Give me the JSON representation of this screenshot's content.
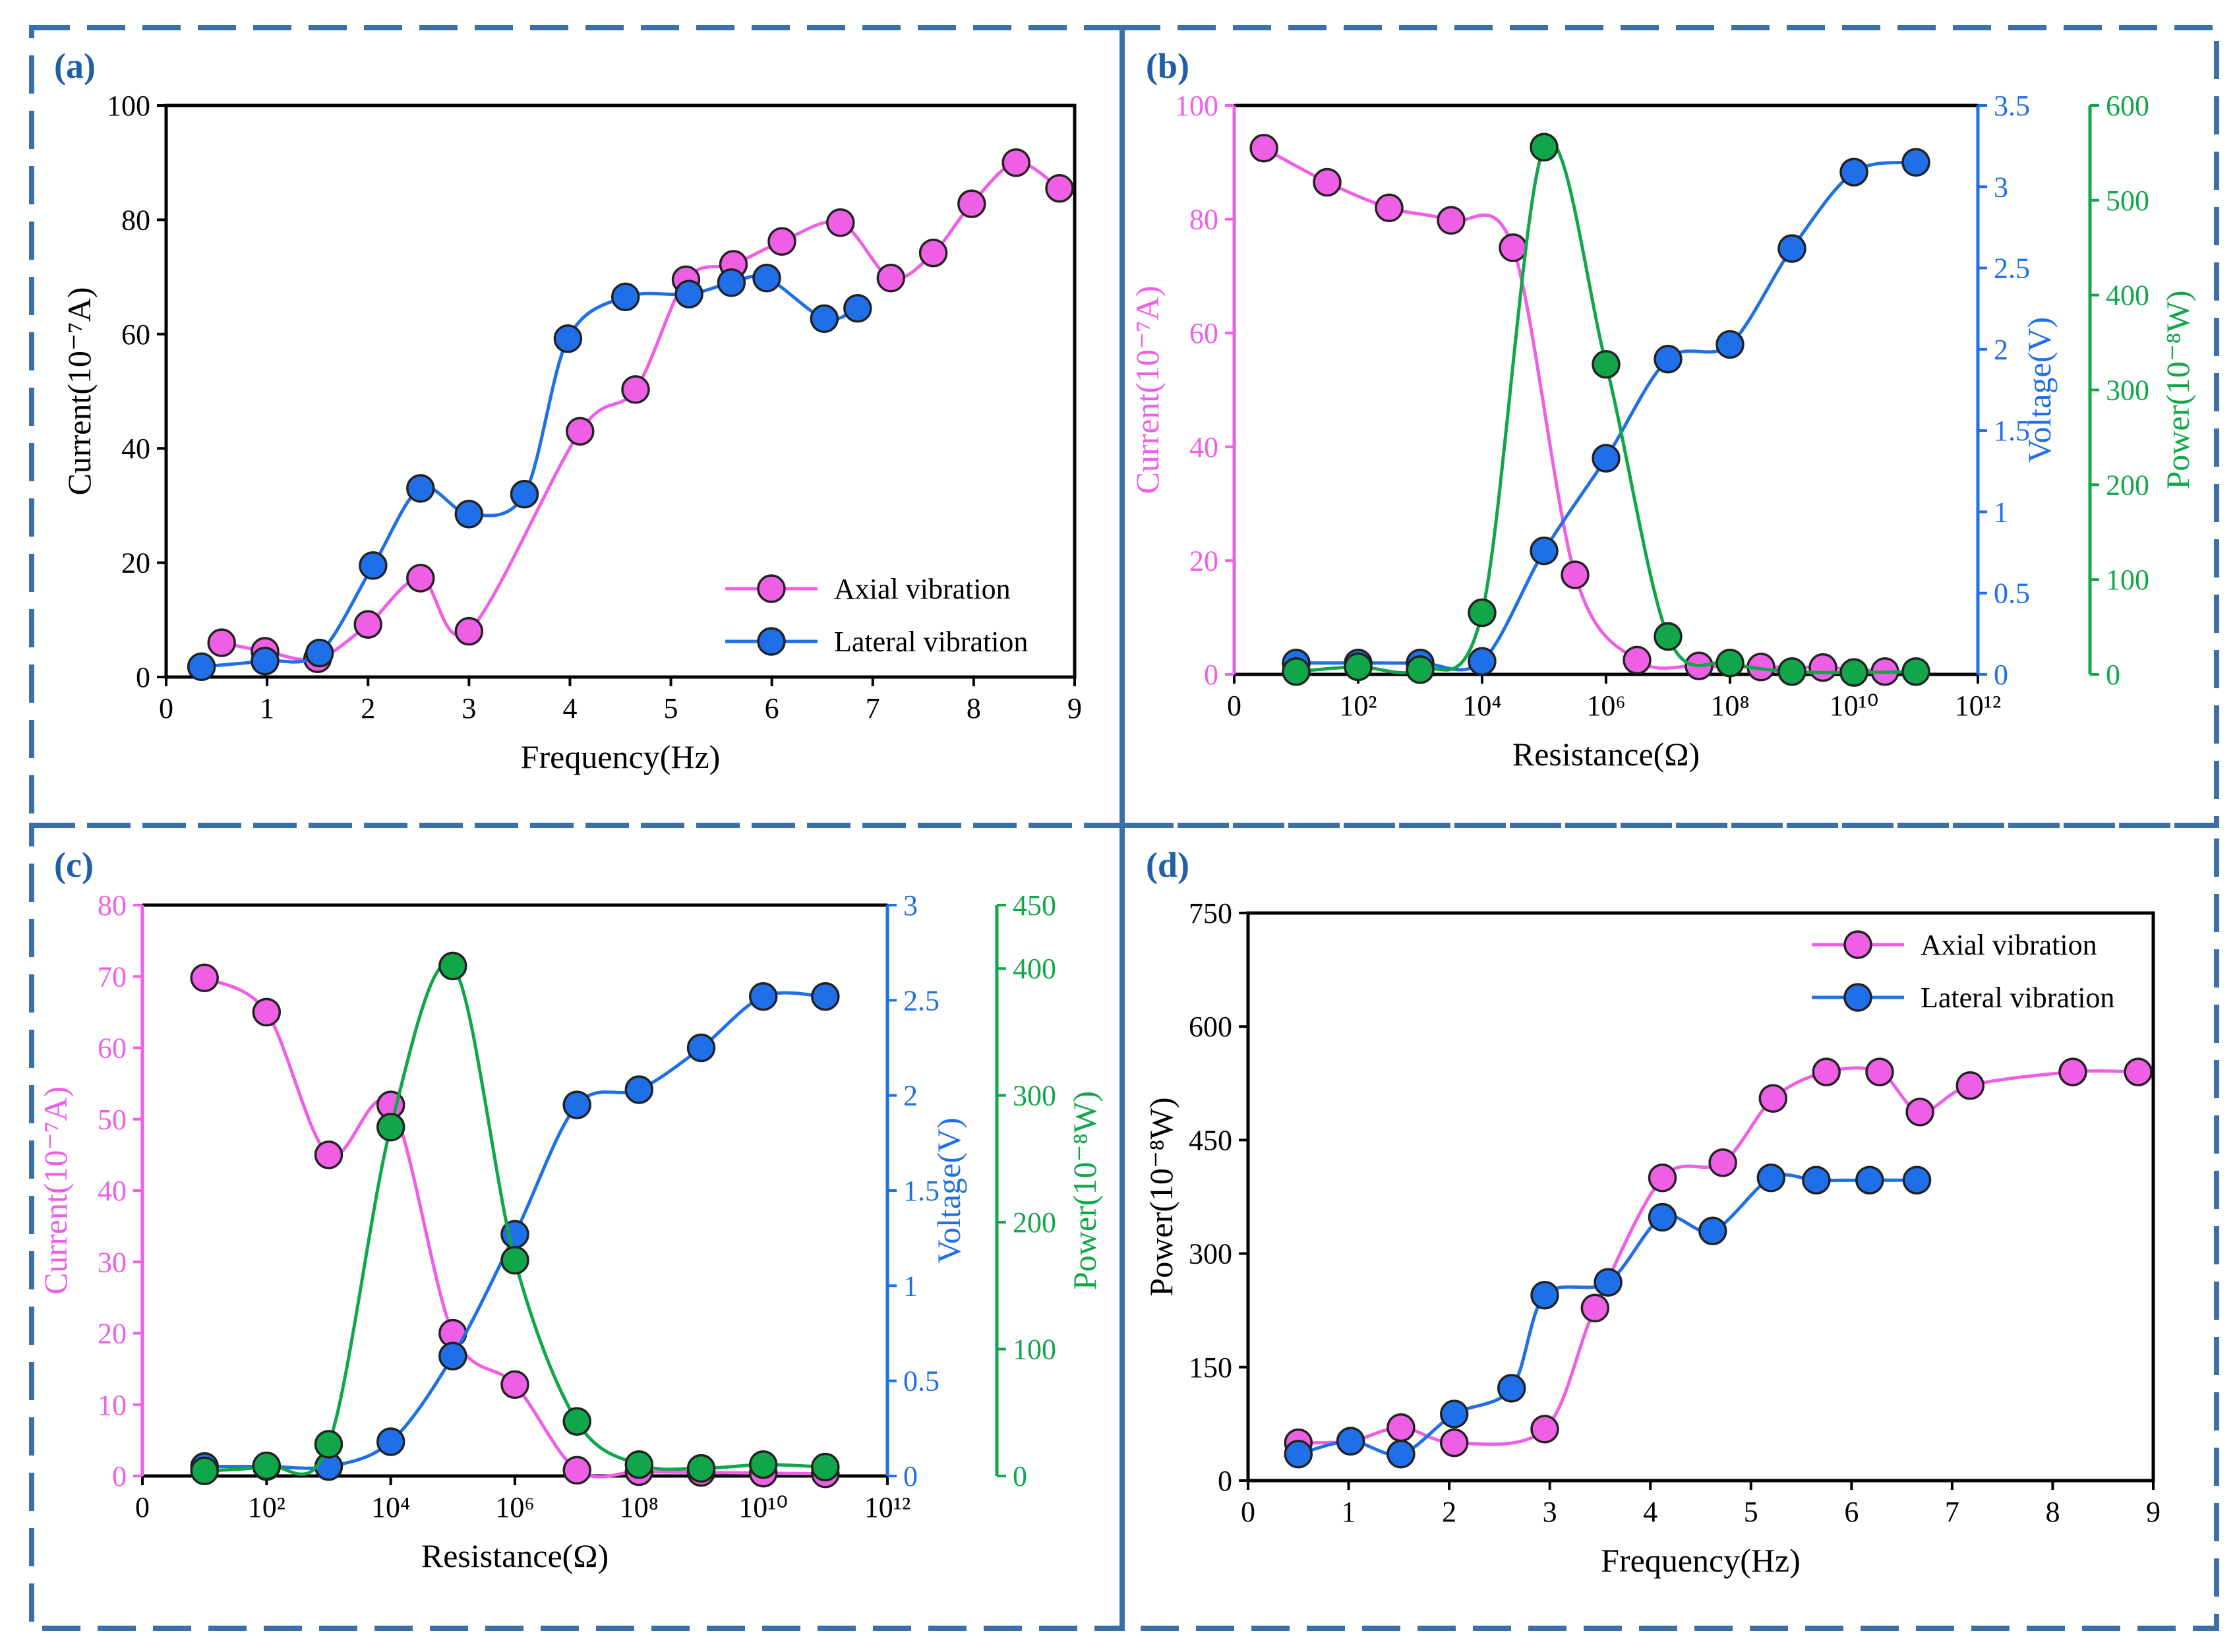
{
  "colors": {
    "axial": "#ef5fe6",
    "lateral": "#1f6fe8",
    "power": "#12a64a",
    "frame": "#3b6fa8",
    "label": "#1f5fa8"
  },
  "chart_data": [
    {
      "id": "a",
      "panel_label": "(a)",
      "type": "line",
      "xlabel": "Frequency(Hz)",
      "ylabel": "Current(10⁻⁷A)",
      "xlim": [
        0,
        9
      ],
      "ylim": [
        0,
        100
      ],
      "xticks": [
        0,
        1,
        2,
        3,
        4,
        5,
        6,
        7,
        8,
        9
      ],
      "xtick_labels": [
        "0",
        "1",
        "2",
        "3",
        "4",
        "5",
        "6",
        "7",
        "8",
        "9"
      ],
      "yticks": [
        0,
        20,
        40,
        60,
        80,
        100
      ],
      "ytick_labels": [
        "0",
        "20",
        "40",
        "60",
        "80",
        "100"
      ],
      "legend": [
        "Axial vibration",
        "Lateral vibration"
      ],
      "legend_position": "bottom-right",
      "series": [
        {
          "name": "Axial vibration",
          "color": "axial",
          "x": [
            0.55,
            0.98,
            1.5,
            2.0,
            2.52,
            3.0,
            4.1,
            4.65,
            5.15,
            5.62,
            6.1,
            6.68,
            7.18,
            7.6,
            7.98,
            8.42,
            8.85
          ],
          "y": [
            6.0,
            4.5,
            3.2,
            9.2,
            17.3,
            8.0,
            43.0,
            50.3,
            69.5,
            72.2,
            76.2,
            79.5,
            69.8,
            74.2,
            82.8,
            90.0,
            85.5
          ]
        },
        {
          "name": "Lateral vibration",
          "color": "lateral",
          "x": [
            0.35,
            0.98,
            1.52,
            2.05,
            2.52,
            3.0,
            3.55,
            3.98,
            4.55,
            5.18,
            5.6,
            5.95,
            6.52,
            6.85
          ],
          "y": [
            1.8,
            2.8,
            4.2,
            19.5,
            33.0,
            28.5,
            32.0,
            59.2,
            66.5,
            67.0,
            69.0,
            69.8,
            62.7,
            64.5
          ]
        }
      ]
    },
    {
      "id": "b",
      "panel_label": "(b)",
      "type": "line",
      "xlabel": "Resistance(Ω)",
      "xscale": "log10",
      "xlim": [
        0,
        12
      ],
      "xticks": [
        0,
        2,
        4,
        6,
        8,
        10,
        12
      ],
      "xtick_labels": [
        "0",
        "10²",
        "10⁴",
        "10⁶",
        "10⁸",
        "10¹⁰",
        "10¹²"
      ],
      "axes": [
        {
          "side": "left",
          "label": "Current(10⁻⁷A)",
          "color": "axial",
          "ylim": [
            0,
            100
          ],
          "ticks": [
            0,
            20,
            40,
            60,
            80,
            100
          ],
          "tick_labels": [
            "0",
            "20",
            "40",
            "60",
            "80",
            "100"
          ]
        },
        {
          "side": "right-1",
          "label": "Voltage(V)",
          "color": "lateral",
          "ylim": [
            0,
            3.5
          ],
          "ticks": [
            0,
            0.5,
            1,
            1.5,
            2,
            2.5,
            3,
            3.5
          ],
          "tick_labels": [
            "0",
            "0.5",
            "1",
            "1.5",
            "2",
            "2.5",
            "3",
            "3.5"
          ]
        },
        {
          "side": "right-2",
          "label": "Power(10⁻⁸W)",
          "color": "power",
          "ylim": [
            0,
            600
          ],
          "ticks": [
            0,
            100,
            200,
            300,
            400,
            500,
            600
          ],
          "tick_labels": [
            "0",
            "100",
            "200",
            "300",
            "400",
            "500",
            "600"
          ]
        }
      ],
      "series": [
        {
          "name": "Current",
          "axis": 0,
          "color": "axial",
          "x": [
            0.48,
            1.5,
            2.5,
            3.5,
            4.5,
            5.5,
            6.5,
            7.5,
            8.5,
            9.5,
            10.5
          ],
          "y": [
            92.5,
            86.5,
            82.0,
            79.8,
            75.0,
            17.5,
            2.5,
            1.5,
            1.3,
            1.2,
            0.5
          ]
        },
        {
          "name": "Voltage",
          "axis": 1,
          "color": "lateral",
          "x": [
            1.0,
            2.0,
            3.0,
            4.0,
            5.0,
            6.0,
            7.0,
            8.0,
            9.0,
            10.0,
            11.0
          ],
          "y": [
            0.07,
            0.07,
            0.07,
            0.08,
            0.76,
            1.33,
            1.94,
            2.03,
            2.62,
            3.09,
            3.15
          ]
        },
        {
          "name": "Power",
          "axis": 2,
          "color": "power",
          "x": [
            1.0,
            2.0,
            3.0,
            4.0,
            5.0,
            6.0,
            7.0,
            8.0,
            9.0,
            10.0,
            11.0
          ],
          "y": [
            3,
            8,
            5,
            65,
            556,
            327,
            40,
            12,
            3,
            2,
            3
          ]
        }
      ]
    },
    {
      "id": "c",
      "panel_label": "(c)",
      "type": "line",
      "xlabel": "Resistance(Ω)",
      "xscale": "log10",
      "xlim": [
        0,
        12
      ],
      "xticks": [
        0,
        2,
        4,
        6,
        8,
        10,
        12
      ],
      "xtick_labels": [
        "0",
        "10²",
        "10⁴",
        "10⁶",
        "10⁸",
        "10¹⁰",
        "10¹²"
      ],
      "axes": [
        {
          "side": "left",
          "label": "Current(10⁻⁷A)",
          "color": "axial",
          "ylim": [
            0,
            80
          ],
          "ticks": [
            0,
            10,
            20,
            30,
            40,
            50,
            60,
            70,
            80
          ],
          "tick_labels": [
            "0",
            "10",
            "20",
            "30",
            "40",
            "50",
            "60",
            "70",
            "80"
          ]
        },
        {
          "side": "right-1",
          "label": "Voltage(V)",
          "color": "lateral",
          "ylim": [
            0,
            3
          ],
          "ticks": [
            0,
            0.5,
            1,
            1.5,
            2,
            2.5,
            3
          ],
          "tick_labels": [
            "0",
            "0.5",
            "1",
            "1.5",
            "2",
            "2.5",
            "3"
          ]
        },
        {
          "side": "right-2",
          "label": "Power(10⁻⁸W)",
          "color": "power",
          "ylim": [
            0,
            450
          ],
          "ticks": [
            0,
            100,
            200,
            300,
            400,
            450
          ],
          "tick_labels": [
            "0",
            "100",
            "200",
            "300",
            "400",
            "450"
          ]
        }
      ],
      "series": [
        {
          "name": "Current",
          "axis": 0,
          "color": "axial",
          "x": [
            1.0,
            2.0,
            3.0,
            4.0,
            5.0,
            6.0,
            7.0,
            8.0,
            9.0,
            10.0,
            11.0
          ],
          "y": [
            69.8,
            65.0,
            45.0,
            52.0,
            20.0,
            12.8,
            0.8,
            0.6,
            0.5,
            0.4,
            0.3
          ]
        },
        {
          "name": "Voltage",
          "axis": 1,
          "color": "lateral",
          "x": [
            1.0,
            2.0,
            3.0,
            4.0,
            5.0,
            6.0,
            7.0,
            8.0,
            9.0,
            10.0,
            11.0
          ],
          "y": [
            0.05,
            0.05,
            0.05,
            0.18,
            0.63,
            1.27,
            1.95,
            2.03,
            2.25,
            2.52,
            2.52
          ]
        },
        {
          "name": "Power",
          "axis": 2,
          "color": "power",
          "x": [
            1.0,
            2.0,
            3.0,
            4.0,
            5.0,
            6.0,
            7.0,
            8.0,
            9.0,
            10.0,
            11.0
          ],
          "y": [
            4,
            8,
            25,
            275,
            402,
            170,
            43,
            9,
            6,
            9,
            7
          ]
        }
      ]
    },
    {
      "id": "d",
      "panel_label": "(d)",
      "type": "line",
      "xlabel": "Frequency(Hz)",
      "ylabel": "Power(10⁻⁸W)",
      "xlim": [
        0,
        9
      ],
      "ylim": [
        0,
        750
      ],
      "xticks": [
        0,
        1,
        2,
        3,
        4,
        5,
        6,
        7,
        8,
        9
      ],
      "xtick_labels": [
        "0",
        "1",
        "2",
        "3",
        "4",
        "5",
        "6",
        "7",
        "8",
        "9"
      ],
      "yticks": [
        0,
        150,
        300,
        450,
        600,
        750
      ],
      "ytick_labels": [
        "0",
        "150",
        "300",
        "450",
        "600",
        "750"
      ],
      "legend": [
        "Axial vibration",
        "Lateral vibration"
      ],
      "legend_position": "top-right",
      "series": [
        {
          "name": "Axial vibration",
          "color": "axial",
          "x": [
            0.5,
            1.02,
            1.52,
            2.05,
            2.95,
            3.45,
            4.12,
            4.72,
            5.22,
            5.75,
            6.28,
            6.68,
            7.18,
            8.2,
            8.85
          ],
          "y": [
            50,
            52,
            70,
            50,
            68,
            228,
            400,
            420,
            505,
            540,
            540,
            487,
            522,
            540,
            540
          ]
        },
        {
          "name": "Lateral vibration",
          "color": "lateral",
          "x": [
            0.5,
            1.02,
            1.52,
            2.05,
            2.62,
            2.95,
            3.58,
            4.12,
            4.62,
            5.2,
            5.65,
            6.18,
            6.65
          ],
          "y": [
            35,
            52,
            35,
            88,
            122,
            245,
            262,
            348,
            330,
            400,
            397,
            397,
            397
          ]
        }
      ]
    }
  ]
}
